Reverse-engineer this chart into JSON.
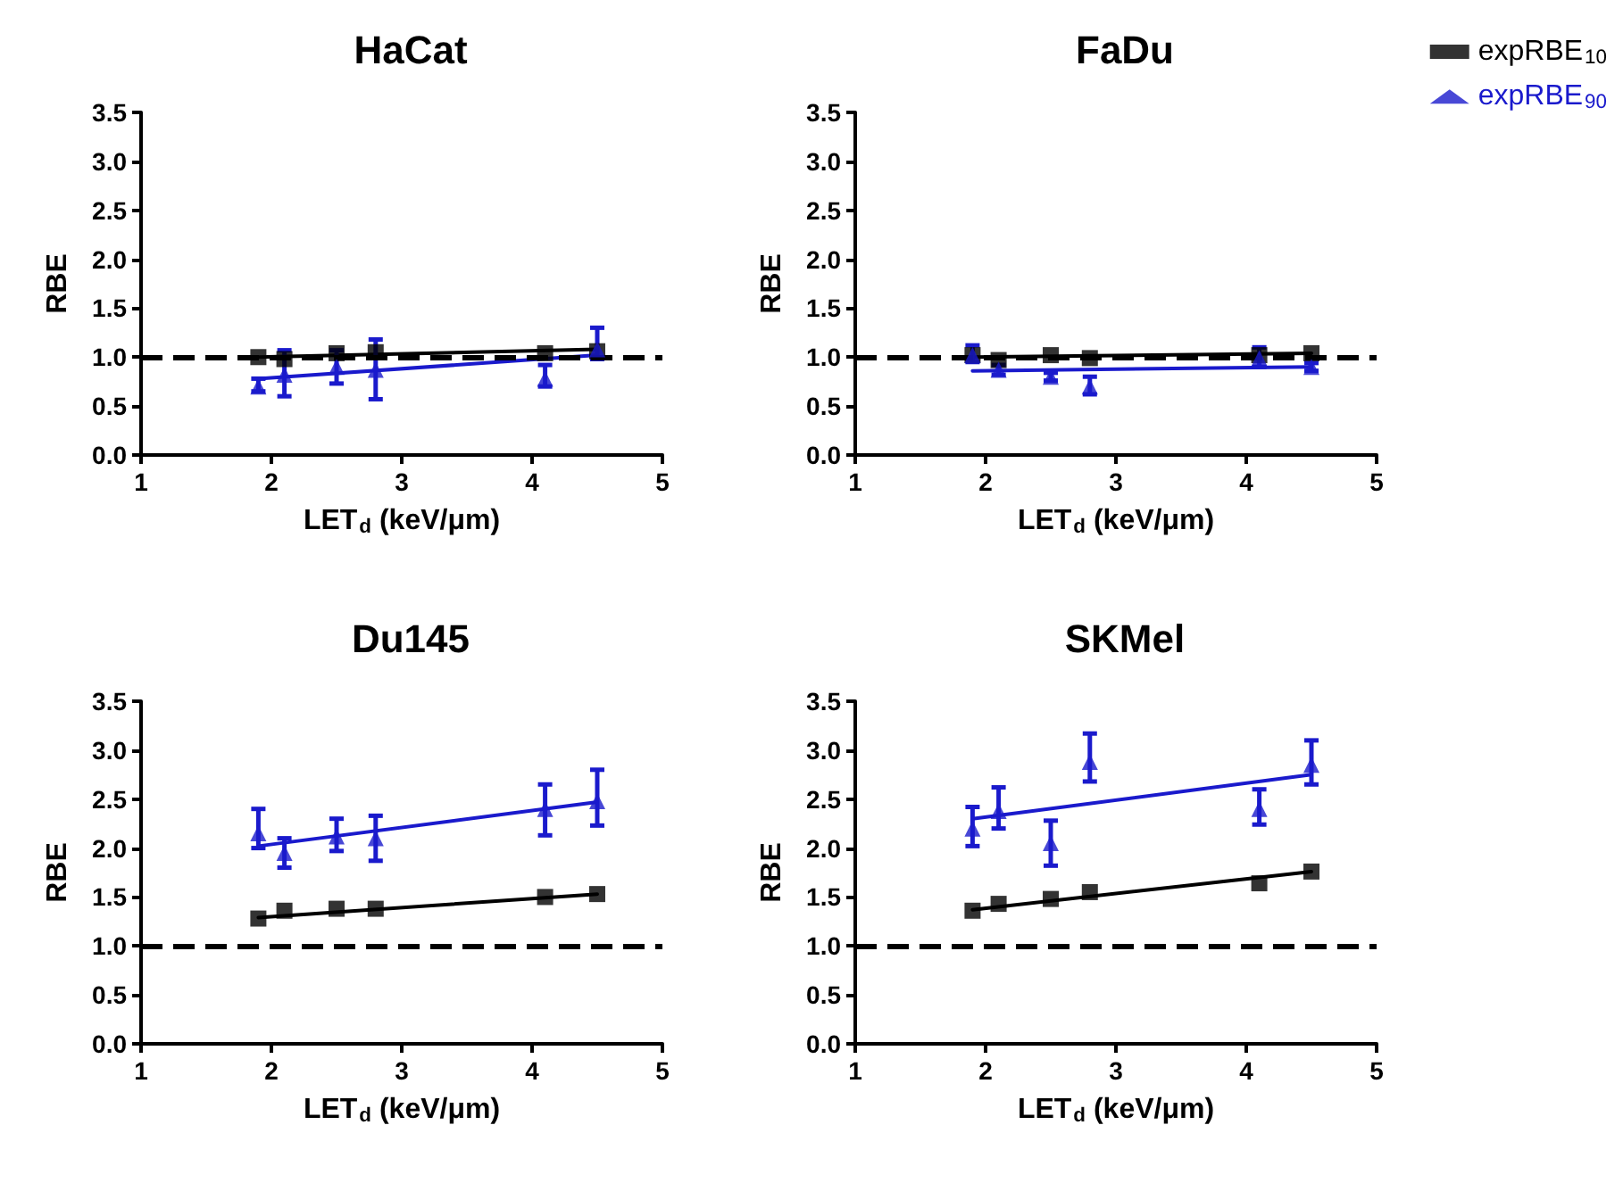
{
  "chart_data": [
    {
      "type": "scatter",
      "title": "HaCat",
      "xlabel": "LET$_{d}$ (keV/μm)",
      "ylabel": "RBE",
      "xlim": [
        1,
        5
      ],
      "xticks": [
        1,
        2,
        3,
        4,
        5
      ],
      "ylim": [
        0,
        3.5
      ],
      "yticks": [
        {
          "value": 0,
          "label": "0.0"
        },
        {
          "value": 0.5,
          "label": "0.5"
        },
        {
          "value": 1,
          "label": "1.0"
        },
        {
          "value": 1.5,
          "label": "1.5"
        },
        {
          "value": 2,
          "label": "2.0"
        },
        {
          "value": 2.5,
          "label": "2.5"
        },
        {
          "value": 3,
          "label": "3.0"
        },
        {
          "value": 3.5,
          "label": "3.5"
        }
      ],
      "grid": false,
      "legend": false,
      "ref_lines": [
        {
          "axis": "y",
          "value": 1,
          "line_style": "dashed",
          "color": "#000000"
        }
      ],
      "series": [
        {
          "color": "#000000",
          "marker": "square",
          "x": [
            1.9,
            2.1,
            2.5,
            2.8,
            4.1,
            4.5
          ],
          "values": [
            1.0,
            0.98,
            1.04,
            1.05,
            1.04,
            1.06
          ]
        },
        {
          "color": "#1a1acc",
          "marker": "triangle",
          "x": [
            1.9,
            2.1,
            2.5,
            2.8,
            4.1,
            4.5
          ],
          "values": [
            0.7,
            0.82,
            0.9,
            0.87,
            0.78,
            1.08
          ],
          "errors": [
            [
              0.65,
              0.78
            ],
            [
              0.6,
              1.07
            ],
            [
              0.73,
              1.07
            ],
            [
              0.57,
              1.18
            ],
            [
              0.7,
              0.92
            ],
            [
              0.98,
              1.3
            ]
          ]
        },
        {
          "type": "line",
          "color": "#000000",
          "marker": "none",
          "x": [
            1.9,
            4.5
          ],
          "values": [
            1.0,
            1.08
          ]
        },
        {
          "type": "line",
          "color": "#1a1acc",
          "marker": "none",
          "x": [
            1.9,
            4.5
          ],
          "values": [
            0.78,
            1.02
          ]
        }
      ]
    },
    {
      "type": "scatter",
      "title": "FaDu",
      "xlabel": "LET$_{d}$ (keV/μm)",
      "ylabel": "RBE",
      "xlim": [
        1,
        5
      ],
      "xticks": [
        1,
        2,
        3,
        4,
        5
      ],
      "ylim": [
        0,
        3.5
      ],
      "yticks": [
        {
          "value": 0,
          "label": "0.0"
        },
        {
          "value": 0.5,
          "label": "0.5"
        },
        {
          "value": 1,
          "label": "1.0"
        },
        {
          "value": 1.5,
          "label": "1.5"
        },
        {
          "value": 2,
          "label": "2.0"
        },
        {
          "value": 2.5,
          "label": "2.5"
        },
        {
          "value": 3,
          "label": "3.0"
        },
        {
          "value": 3.5,
          "label": "3.5"
        }
      ],
      "grid": false,
      "legend": "top right",
      "ref_lines": [
        {
          "axis": "y",
          "value": 1,
          "line_style": "dashed",
          "color": "#000000"
        }
      ],
      "series": [
        {
          "name": "expRBE$_{10}$",
          "color": "#000000",
          "marker": "square",
          "x": [
            1.9,
            2.1,
            2.5,
            2.8,
            4.1,
            4.5
          ],
          "values": [
            1.02,
            0.97,
            1.02,
            0.99,
            1.02,
            1.04
          ]
        },
        {
          "name": "expRBE$_{90}$",
          "color": "#1a1acc",
          "marker": "triangle",
          "x": [
            1.9,
            2.1,
            2.5,
            2.8,
            4.1,
            4.5
          ],
          "values": [
            1.02,
            0.87,
            0.8,
            0.7,
            0.99,
            0.9
          ],
          "errors": [
            [
              0.95,
              1.12
            ],
            [
              0.82,
              0.92
            ],
            [
              0.76,
              0.84
            ],
            [
              0.62,
              0.8
            ],
            [
              0.9,
              1.1
            ],
            [
              0.86,
              0.94
            ]
          ]
        },
        {
          "type": "line",
          "color": "#000000",
          "marker": "none",
          "x": [
            1.9,
            4.5
          ],
          "values": [
            1.0,
            1.04
          ]
        },
        {
          "type": "line",
          "color": "#1a1acc",
          "marker": "none",
          "x": [
            1.9,
            4.5
          ],
          "values": [
            0.86,
            0.9
          ]
        }
      ]
    },
    {
      "type": "scatter",
      "title": "Du145",
      "xlabel": "LET$_{d}$ (keV/μm)",
      "ylabel": "RBE",
      "xlim": [
        1,
        5
      ],
      "xticks": [
        1,
        2,
        3,
        4,
        5
      ],
      "ylim": [
        0,
        3.5
      ],
      "yticks": [
        {
          "value": 0,
          "label": "0.0"
        },
        {
          "value": 0.5,
          "label": "0.5"
        },
        {
          "value": 1,
          "label": "1.0"
        },
        {
          "value": 1.5,
          "label": "1.5"
        },
        {
          "value": 2,
          "label": "2.0"
        },
        {
          "value": 2.5,
          "label": "2.5"
        },
        {
          "value": 3,
          "label": "3.0"
        },
        {
          "value": 3.5,
          "label": "3.5"
        }
      ],
      "grid": false,
      "legend": false,
      "ref_lines": [
        {
          "axis": "y",
          "value": 1,
          "line_style": "dashed",
          "color": "#000000"
        }
      ],
      "series": [
        {
          "color": "#000000",
          "marker": "square",
          "x": [
            1.9,
            2.1,
            2.5,
            2.8,
            4.1,
            4.5
          ],
          "values": [
            1.28,
            1.36,
            1.38,
            1.38,
            1.5,
            1.53
          ]
        },
        {
          "color": "#1a1acc",
          "marker": "triangle",
          "x": [
            1.9,
            2.1,
            2.5,
            2.8,
            4.1,
            4.5
          ],
          "values": [
            2.15,
            1.95,
            2.12,
            2.1,
            2.4,
            2.48
          ],
          "errors": [
            [
              2.0,
              2.4
            ],
            [
              1.8,
              2.1
            ],
            [
              1.97,
              2.3
            ],
            [
              1.87,
              2.33
            ],
            [
              2.13,
              2.65
            ],
            [
              2.23,
              2.8
            ]
          ]
        },
        {
          "type": "line",
          "color": "#000000",
          "marker": "none",
          "x": [
            1.9,
            4.5
          ],
          "values": [
            1.29,
            1.53
          ]
        },
        {
          "type": "line",
          "color": "#1a1acc",
          "marker": "none",
          "x": [
            1.9,
            4.5
          ],
          "values": [
            2.02,
            2.47
          ]
        }
      ]
    },
    {
      "type": "scatter",
      "title": "SKMel",
      "xlabel": "LET$_{d}$ (keV/μm)",
      "ylabel": "RBE",
      "xlim": [
        1,
        5
      ],
      "xticks": [
        1,
        2,
        3,
        4,
        5
      ],
      "ylim": [
        0,
        3.5
      ],
      "yticks": [
        {
          "value": 0,
          "label": "0.0"
        },
        {
          "value": 0.5,
          "label": "0.5"
        },
        {
          "value": 1,
          "label": "1.0"
        },
        {
          "value": 1.5,
          "label": "1.5"
        },
        {
          "value": 2,
          "label": "2.0"
        },
        {
          "value": 2.5,
          "label": "2.5"
        },
        {
          "value": 3,
          "label": "3.0"
        },
        {
          "value": 3.5,
          "label": "3.5"
        }
      ],
      "grid": false,
      "legend": false,
      "ref_lines": [
        {
          "axis": "y",
          "value": 1,
          "line_style": "dashed",
          "color": "#000000"
        }
      ],
      "series": [
        {
          "color": "#000000",
          "marker": "square",
          "x": [
            1.9,
            2.1,
            2.5,
            2.8,
            4.1,
            4.5
          ],
          "values": [
            1.36,
            1.43,
            1.48,
            1.55,
            1.64,
            1.76
          ]
        },
        {
          "color": "#1a1acc",
          "marker": "triangle",
          "x": [
            1.9,
            2.1,
            2.5,
            2.8,
            4.1,
            4.5
          ],
          "values": [
            2.2,
            2.38,
            2.05,
            2.88,
            2.4,
            2.85
          ],
          "errors": [
            [
              2.02,
              2.42
            ],
            [
              2.2,
              2.62
            ],
            [
              1.82,
              2.28
            ],
            [
              2.68,
              3.17
            ],
            [
              2.24,
              2.6
            ],
            [
              2.65,
              3.1
            ]
          ]
        },
        {
          "type": "line",
          "color": "#000000",
          "marker": "none",
          "x": [
            1.9,
            4.5
          ],
          "values": [
            1.37,
            1.76
          ]
        },
        {
          "type": "line",
          "color": "#1a1acc",
          "marker": "none",
          "x": [
            1.9,
            4.5
          ],
          "values": [
            2.3,
            2.75
          ]
        }
      ]
    }
  ]
}
